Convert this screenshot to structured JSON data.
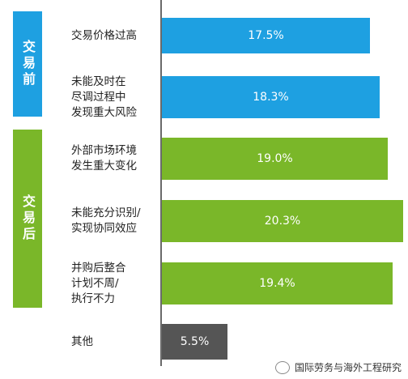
{
  "chart_data": {
    "type": "bar",
    "orientation": "horizontal",
    "groups": [
      {
        "label": "交易前",
        "color": "#1ea0e1"
      },
      {
        "label": "交易后",
        "color": "#7ab729"
      }
    ],
    "categories": [
      "交易价格过高",
      "未能及时在尽调过程中发现重大风险",
      "外部市场环境发生重大变化",
      "未能充分识别/实现协同效应",
      "并购后整合计划不周/执行不力",
      "其他"
    ],
    "label_lines": [
      [
        "交易价格过高"
      ],
      [
        "未能及时在",
        "尽调过程中",
        "发现重大风险"
      ],
      [
        "外部市场环境",
        "发生重大变化"
      ],
      [
        "未能充分识别/",
        "实现协同效应"
      ],
      [
        "并购后整合",
        "计划不周/",
        "执行不力"
      ],
      [
        "其他"
      ]
    ],
    "category_group": [
      0,
      0,
      1,
      1,
      1,
      null
    ],
    "values": [
      17.5,
      18.3,
      19.0,
      20.3,
      19.4,
      5.5
    ],
    "value_labels": [
      "17.5%",
      "18.3%",
      "19.0%",
      "20.3%",
      "19.4%",
      "5.5%"
    ],
    "bar_colors": [
      "#1ea0e1",
      "#1ea0e1",
      "#7ab729",
      "#7ab729",
      "#7ab729",
      "#555555"
    ],
    "xlim": [
      0,
      20.3
    ]
  },
  "watermark": {
    "text": "国际劳务与海外工程研究",
    "icon": "wechat-icon"
  }
}
